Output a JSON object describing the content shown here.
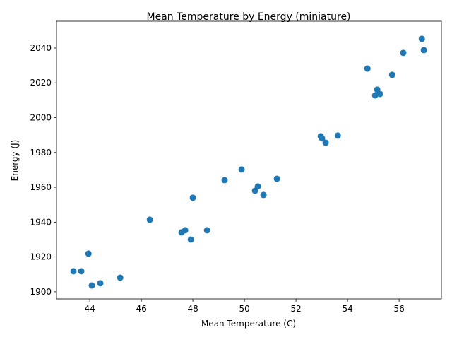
{
  "chart_data": {
    "type": "scatter",
    "title": "Mean Temperature by Energy (miniature)",
    "x_label": "Mean Temperature (C)",
    "y_label": "Energy (J)",
    "color": "#1f77b4",
    "x": [
      56.88,
      56.96,
      56.16,
      54.77,
      55.73,
      55.15,
      55.26,
      55.07,
      52.96,
      53.01,
      53.15,
      53.62,
      49.89,
      49.23,
      51.26,
      50.52,
      50.41,
      50.74,
      48.0,
      46.33,
      47.7,
      47.56,
      48.55,
      47.92,
      43.95,
      43.37,
      43.67,
      45.18,
      44.41,
      44.08
    ],
    "values": [
      2045.3,
      2038.8,
      2037.2,
      2028.2,
      2024.6,
      2016.1,
      2013.6,
      2012.8,
      1989.3,
      1988.1,
      1985.6,
      1989.7,
      1970.2,
      1964.1,
      1964.9,
      1960.5,
      1958.0,
      1955.6,
      1954.0,
      1941.4,
      1935.3,
      1934.1,
      1935.3,
      1930.0,
      1921.9,
      1911.8,
      1911.8,
      1908.1,
      1904.9,
      1903.6
    ],
    "xlim": [
      42.71,
      57.64
    ],
    "ylim": [
      1895.9,
      2055.4
    ],
    "xticks": [
      44,
      46,
      48,
      50,
      52,
      54,
      56
    ],
    "yticks": [
      1900,
      1920,
      1940,
      1960,
      1980,
      2000,
      2020,
      2040
    ],
    "grid": false
  }
}
